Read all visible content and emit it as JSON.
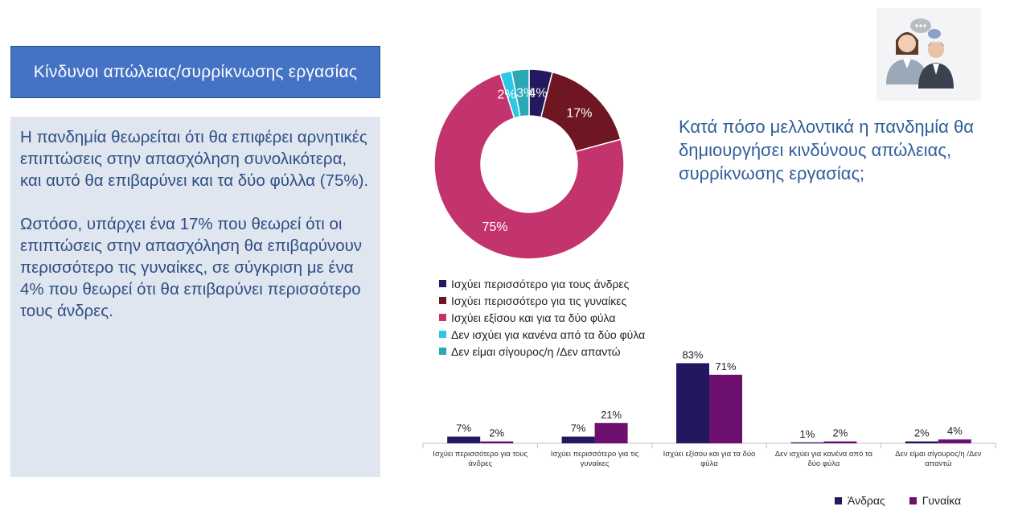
{
  "header": {
    "title": "Κίνδυνοι απώλειας/συρρίκνωσης εργασίας"
  },
  "summary": {
    "paragraph1": "Η πανδημία θεωρείται ότι θα επιφέρει αρνητικές επιπτώσεις στην απασχόληση συνολικότερα, και αυτό θα επιβαρύνει και τα δύο φύλλα (75%).",
    "paragraph2": "Ωστόσο, υπάρχει ένα 17% που θεωρεί ότι οι επιπτώσεις στην απασχόληση θα επιβαρύνουν περισσότερο τις γυναίκες, σε σύγκριση με ένα 4% που θεωρεί ότι θα επιβαρύνει περισσότερο τους άνδρες."
  },
  "question": "Κατά πόσο μελλοντικά η πανδημία θα δημιουργήσει κινδύνους απώλειας, συρρίκνωσης εργασίας;",
  "illustration_icon": "people-discussion-icon",
  "chart_data": [
    {
      "type": "pie",
      "donut": true,
      "labels": [
        "Ισχύει περισσότερο για τους άνδρες",
        "Ισχύει περισσότερο για τις γυναίκες",
        "Ισχύει εξίσου και για τα δύο φύλα",
        "Δεν ισχύει για κανένα από τα δύο φύλα",
        "Δεν είμαι σίγουρος/η /Δεν απαντώ"
      ],
      "values": [
        4,
        17,
        75,
        2,
        3
      ],
      "value_labels": [
        "4%",
        "17%",
        "75%",
        "2%",
        "3%"
      ],
      "colors": [
        "#24185e",
        "#6e1722",
        "#c3336e",
        "#2cc6e6",
        "#2aa9b5"
      ],
      "legend": "bottom-left"
    },
    {
      "type": "bar",
      "categories": [
        [
          "Ισχύει περισσότερο για τους",
          "άνδρες"
        ],
        [
          "Ισχύει περισσότερο για τις",
          "γυναίκες"
        ],
        [
          "Ισχύει εξίσου και για τα δύο",
          "φύλα"
        ],
        [
          "Δεν ισχύει για κανένα από τα",
          "δύο φύλα"
        ],
        [
          "Δεν είμαι σίγουρος/η /Δεν",
          "απαντώ"
        ]
      ],
      "series": [
        {
          "name": "Άνδρας",
          "values": [
            7,
            7,
            83,
            1,
            2
          ],
          "value_labels": [
            "7%",
            "7%",
            "83%",
            "1%",
            "2%"
          ],
          "color": "#231860"
        },
        {
          "name": "Γυναίκα",
          "values": [
            2,
            21,
            71,
            2,
            4
          ],
          "value_labels": [
            "2%",
            "21%",
            "71%",
            "2%",
            "4%"
          ],
          "color": "#6d0f6e"
        }
      ],
      "ylim": [
        0,
        90
      ],
      "grid": false,
      "legend": "bottom-right"
    }
  ]
}
